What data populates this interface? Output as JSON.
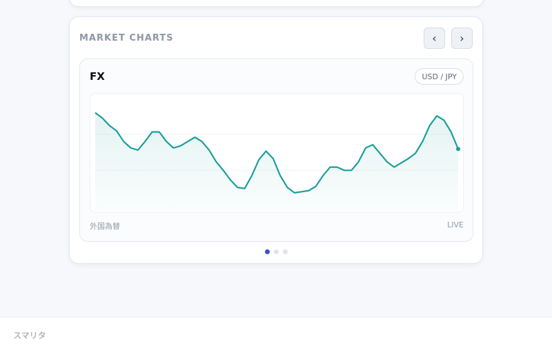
{
  "card": {
    "title": "MARKET CHARTS",
    "prev_button": "‹",
    "next_button": "›"
  },
  "chart_data": {
    "type": "line",
    "title": "FX",
    "badge": "USD / JPY",
    "caption": "外国為替",
    "status": "LIVE",
    "color": "#1a9e9a",
    "ylim": [
      0,
      100
    ],
    "values": [
      88,
      83,
      76,
      71,
      61,
      55,
      53,
      61,
      70,
      70,
      61,
      55,
      57,
      61,
      65,
      61,
      53,
      42,
      34,
      25,
      18,
      17,
      29,
      44,
      52,
      45,
      29,
      18,
      13,
      14,
      15,
      19,
      29,
      37,
      37,
      34,
      34,
      42,
      55,
      58,
      50,
      42,
      37,
      41,
      45,
      50,
      61,
      76,
      85,
      81,
      70,
      54
    ]
  },
  "footer": {
    "brand": "スマリタ"
  }
}
